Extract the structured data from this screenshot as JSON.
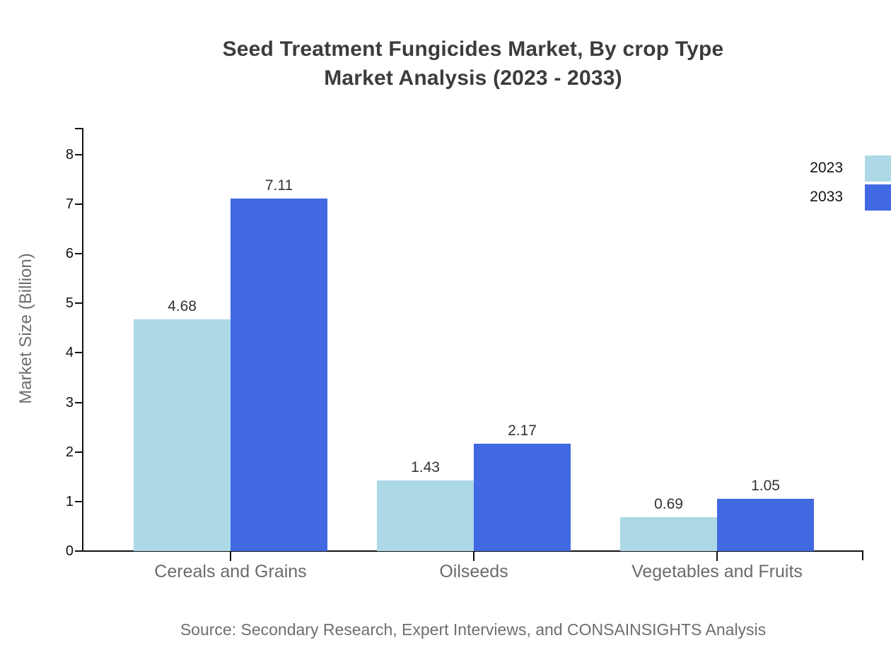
{
  "title": {
    "line1": "Seed Treatment Fungicides Market, By crop Type",
    "line2": "Market Analysis (2023 - 2033)"
  },
  "chart_data": {
    "type": "bar",
    "categories": [
      "Cereals and Grains",
      "Oilseeds",
      "Vegetables and Fruits"
    ],
    "series": [
      {
        "name": "2023",
        "color": "#ADD8E6",
        "values": [
          4.68,
          1.43,
          0.69
        ]
      },
      {
        "name": "2033",
        "color": "#4169E1",
        "values": [
          7.11,
          2.17,
          1.05
        ]
      }
    ],
    "xlabel": "",
    "ylabel": "Market Size (Billion)",
    "ylim": [
      0,
      8
    ],
    "yticks": [
      0,
      1,
      2,
      3,
      4,
      5,
      6,
      7,
      8
    ],
    "grid": false,
    "value_labels": true,
    "legend_position": "top-right-outside"
  },
  "source": "Source: Secondary Research, Expert Interviews, and CONSAINSIGHTS Analysis",
  "colors": {
    "series_2023": "#ADD8E6",
    "series_2033": "#4169E1",
    "axis": "#111111",
    "title_text": "#3c3c3c",
    "value_text": "#333333",
    "muted_text": "#6e6e6e"
  }
}
